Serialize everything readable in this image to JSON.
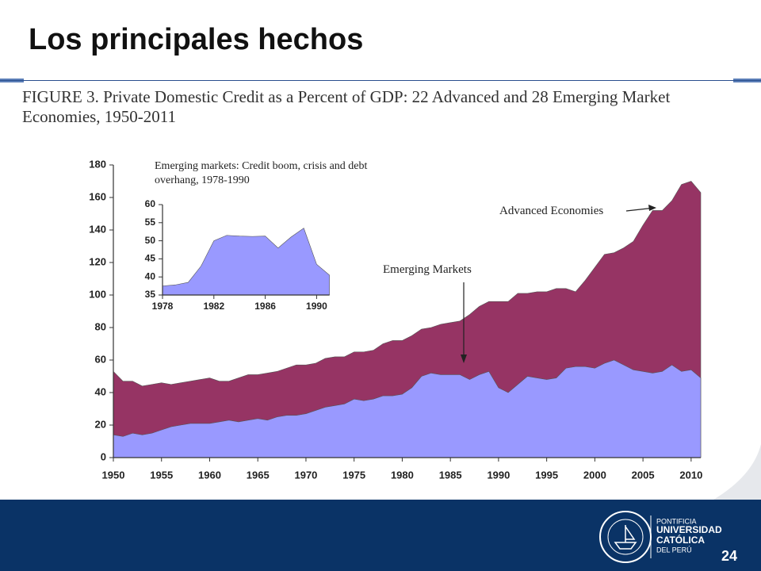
{
  "slide": {
    "title": "Los principales hechos",
    "page_number": "24",
    "logo_text": [
      "PONTIFICIA",
      "UNIVERSIDAD",
      "CATÓLICA",
      "DEL PERÚ"
    ]
  },
  "chart_data": [
    {
      "type": "area",
      "title": "FIGURE 3. Private Domestic Credit as a Percent of GDP: 22 Advanced and 28 Emerging Market Economies, 1950-2011",
      "x": [
        1950,
        1951,
        1952,
        1953,
        1954,
        1955,
        1956,
        1957,
        1958,
        1959,
        1960,
        1961,
        1962,
        1963,
        1964,
        1965,
        1966,
        1967,
        1968,
        1969,
        1970,
        1971,
        1972,
        1973,
        1974,
        1975,
        1976,
        1977,
        1978,
        1979,
        1980,
        1981,
        1982,
        1983,
        1984,
        1985,
        1986,
        1987,
        1988,
        1989,
        1990,
        1991,
        1992,
        1993,
        1994,
        1995,
        1996,
        1997,
        1998,
        1999,
        2000,
        2001,
        2002,
        2003,
        2004,
        2005,
        2006,
        2007,
        2008,
        2009,
        2010,
        2011
      ],
      "series": [
        {
          "name": "Advanced Economies",
          "color": "#963464",
          "values": [
            53,
            47,
            47,
            44,
            45,
            46,
            45,
            46,
            47,
            48,
            49,
            47,
            47,
            49,
            51,
            51,
            52,
            53,
            55,
            57,
            57,
            58,
            61,
            62,
            62,
            65,
            65,
            66,
            70,
            72,
            72,
            75,
            79,
            80,
            82,
            83,
            84,
            88,
            93,
            96,
            96,
            96,
            101,
            101,
            102,
            102,
            104,
            104,
            102,
            109,
            117,
            125,
            126,
            129,
            133,
            143,
            152,
            152,
            158,
            168,
            170,
            163
          ]
        },
        {
          "name": "Emerging Markets",
          "color": "#9999ff",
          "values": [
            14,
            13,
            15,
            14,
            15,
            17,
            19,
            20,
            21,
            21,
            21,
            22,
            23,
            22,
            23,
            24,
            23,
            25,
            26,
            26,
            27,
            29,
            31,
            32,
            33,
            36,
            35,
            36,
            38,
            38,
            39,
            43,
            50,
            52,
            51,
            51,
            51,
            48,
            51,
            53,
            43,
            40,
            45,
            50,
            49,
            48,
            49,
            55,
            56,
            56,
            55,
            58,
            60,
            57,
            54,
            53,
            52,
            53,
            57,
            53,
            54,
            49
          ]
        }
      ],
      "xlim": [
        1950,
        2011
      ],
      "xticks": [
        1950,
        1955,
        1960,
        1965,
        1970,
        1975,
        1980,
        1985,
        1990,
        1995,
        2000,
        2005,
        2010
      ],
      "ylim": [
        0,
        180
      ],
      "yticks": [
        0,
        20,
        40,
        60,
        80,
        100,
        120,
        140,
        160,
        180
      ]
    },
    {
      "type": "area",
      "title": "Emerging markets: Credit boom, crisis and debt overhang, 1978-1990",
      "x": [
        1978,
        1979,
        1980,
        1981,
        1982,
        1983,
        1984,
        1985,
        1986,
        1987,
        1988,
        1989,
        1990,
        1991
      ],
      "series": [
        {
          "color": "#9999ff",
          "values": [
            37.5,
            37.8,
            38.5,
            43,
            50,
            51.5,
            51.3,
            51.2,
            51.3,
            48,
            51,
            53.5,
            43.5,
            40.5
          ]
        }
      ],
      "xlim": [
        1978,
        1991
      ],
      "xticks": [
        1978,
        1982,
        1986,
        1990
      ],
      "ylim": [
        35,
        60
      ],
      "yticks": [
        35,
        40,
        45,
        50,
        55,
        60
      ]
    }
  ]
}
